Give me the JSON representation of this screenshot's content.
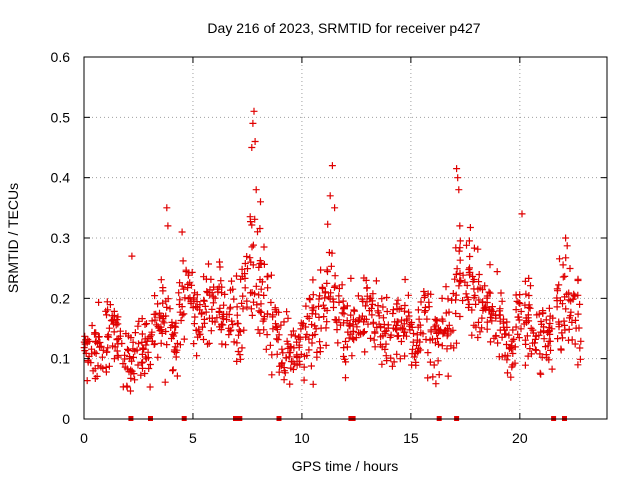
{
  "chart_data": {
    "type": "scatter",
    "title": "Day 216 of 2023, SRMTID for receiver p427",
    "xlabel": "GPS time / hours",
    "ylabel": "SRMTID / TECUs",
    "xlim": [
      0,
      24
    ],
    "ylim": [
      0,
      0.6
    ],
    "x_ticks": [
      0,
      5,
      10,
      15,
      20
    ],
    "x_tick_labels": [
      "0",
      "5",
      "10",
      "15",
      "20"
    ],
    "y_ticks": [
      0,
      0.1,
      0.2,
      0.3,
      0.4,
      0.5,
      0.6
    ],
    "y_tick_labels": [
      "0",
      "0.1",
      "0.2",
      "0.3",
      "0.4",
      "0.5",
      "0.6"
    ],
    "grid": true,
    "marker": "plus",
    "color": "#e00000",
    "series": [
      {
        "name": "SRMTID",
        "x": [
          0.0,
          0.3,
          0.6,
          0.9,
          1.2,
          1.5,
          1.8,
          2.1,
          2.4,
          2.7,
          3.0,
          3.3,
          3.6,
          3.9,
          4.2,
          4.5,
          4.8,
          5.1,
          5.4,
          5.7,
          6.0,
          6.3,
          6.6,
          6.9,
          7.2,
          7.5,
          7.8,
          8.1,
          8.4,
          8.7,
          9.0,
          9.3,
          9.6,
          9.9,
          10.2,
          10.5,
          10.8,
          11.1,
          11.4,
          11.7,
          12.0,
          12.3,
          12.6,
          12.9,
          13.2,
          13.5,
          13.8,
          14.1,
          14.4,
          14.7,
          15.0,
          15.3,
          15.6,
          15.9,
          16.2,
          16.5,
          16.8,
          17.1,
          17.4,
          17.7,
          18.0,
          18.3,
          18.6,
          18.9,
          19.2,
          19.5,
          19.8,
          20.1,
          20.4,
          20.7,
          21.0,
          21.3,
          21.6,
          21.9,
          22.2,
          22.5,
          22.8
        ],
        "y_center": [
          0.13,
          0.12,
          0.11,
          0.13,
          0.14,
          0.15,
          0.13,
          0.09,
          0.12,
          0.11,
          0.12,
          0.14,
          0.17,
          0.15,
          0.12,
          0.19,
          0.22,
          0.18,
          0.16,
          0.18,
          0.2,
          0.19,
          0.17,
          0.16,
          0.18,
          0.22,
          0.24,
          0.22,
          0.2,
          0.17,
          0.12,
          0.11,
          0.1,
          0.12,
          0.14,
          0.16,
          0.18,
          0.2,
          0.22,
          0.18,
          0.14,
          0.15,
          0.17,
          0.19,
          0.18,
          0.16,
          0.14,
          0.13,
          0.15,
          0.16,
          0.14,
          0.13,
          0.15,
          0.14,
          0.13,
          0.15,
          0.14,
          0.22,
          0.24,
          0.23,
          0.2,
          0.18,
          0.17,
          0.18,
          0.13,
          0.12,
          0.15,
          0.17,
          0.16,
          0.14,
          0.15,
          0.13,
          0.17,
          0.19,
          0.21,
          0.16,
          0.15
        ],
        "y_spread": [
          0.04,
          0.04,
          0.05,
          0.05,
          0.04,
          0.04,
          0.05,
          0.04,
          0.03,
          0.04,
          0.04,
          0.05,
          0.06,
          0.06,
          0.05,
          0.05,
          0.05,
          0.05,
          0.04,
          0.05,
          0.05,
          0.05,
          0.04,
          0.05,
          0.06,
          0.07,
          0.08,
          0.07,
          0.06,
          0.05,
          0.03,
          0.04,
          0.04,
          0.04,
          0.05,
          0.06,
          0.06,
          0.07,
          0.07,
          0.06,
          0.05,
          0.05,
          0.05,
          0.05,
          0.05,
          0.05,
          0.04,
          0.04,
          0.05,
          0.05,
          0.04,
          0.04,
          0.05,
          0.05,
          0.04,
          0.05,
          0.05,
          0.07,
          0.07,
          0.06,
          0.06,
          0.05,
          0.05,
          0.05,
          0.04,
          0.04,
          0.05,
          0.05,
          0.05,
          0.04,
          0.05,
          0.04,
          0.05,
          0.06,
          0.06,
          0.05,
          0.05
        ]
      }
    ],
    "peaks": [
      {
        "x": 7.8,
        "y": 0.51
      },
      {
        "x": 7.75,
        "y": 0.49
      },
      {
        "x": 7.85,
        "y": 0.46
      },
      {
        "x": 7.7,
        "y": 0.45
      },
      {
        "x": 7.9,
        "y": 0.38
      },
      {
        "x": 8.1,
        "y": 0.36
      },
      {
        "x": 11.4,
        "y": 0.42
      },
      {
        "x": 11.3,
        "y": 0.37
      },
      {
        "x": 11.5,
        "y": 0.35
      },
      {
        "x": 17.1,
        "y": 0.415
      },
      {
        "x": 17.15,
        "y": 0.4
      },
      {
        "x": 17.2,
        "y": 0.38
      },
      {
        "x": 3.8,
        "y": 0.35
      },
      {
        "x": 3.85,
        "y": 0.32
      },
      {
        "x": 20.1,
        "y": 0.34
      },
      {
        "x": 22.1,
        "y": 0.3
      },
      {
        "x": 2.2,
        "y": 0.27
      },
      {
        "x": 4.5,
        "y": 0.31
      }
    ],
    "zero_markers_x": [
      2.15,
      3.05,
      4.6,
      6.95,
      7.05,
      7.15,
      8.95,
      12.25,
      12.35,
      16.3,
      17.1,
      21.55,
      22.05
    ]
  }
}
